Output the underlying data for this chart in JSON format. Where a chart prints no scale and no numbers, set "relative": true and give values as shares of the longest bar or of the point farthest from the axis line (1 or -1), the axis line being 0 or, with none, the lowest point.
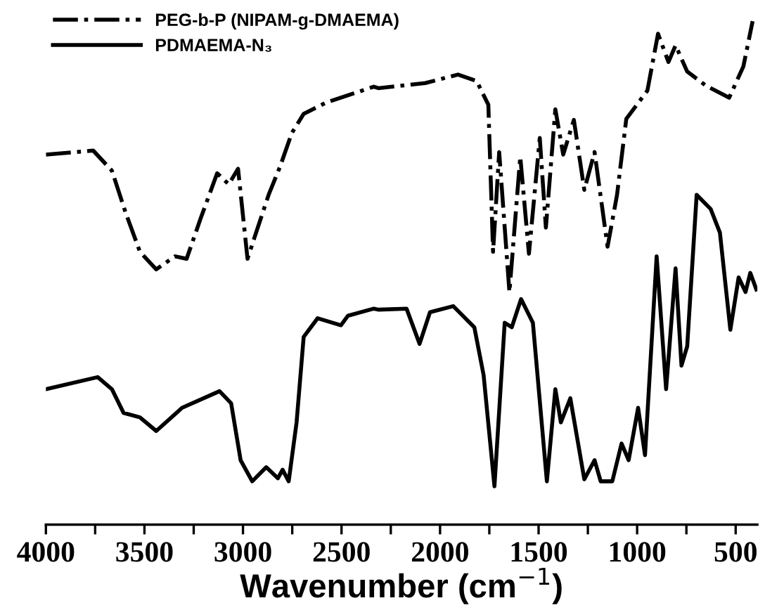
{
  "chart_data": {
    "type": "line",
    "relative": true,
    "xlabel": "Wavenumber (cm$^{−1}$)",
    "xlim": [
      4000,
      390
    ],
    "xticks": [
      4000,
      {
        "value": 3750,
        "label": null
      },
      3500,
      {
        "value": 3250,
        "label": null
      },
      3000,
      {
        "value": 2750,
        "label": null
      },
      2500,
      {
        "value": 2250,
        "label": null
      },
      2000,
      {
        "value": 1750,
        "label": null
      },
      1500,
      {
        "value": 1250,
        "label": null
      },
      1000,
      {
        "value": 750,
        "label": null
      },
      500
    ],
    "tick_labels": "x",
    "grid": false,
    "legend": "top left",
    "marker": "none",
    "series": [
      {
        "name": "PEG-b-P (NIPAM-g-DMAEMA)",
        "color": "#000000",
        "line_style": "dashdot",
        "x": [
          4000,
          3760,
          3665,
          3594,
          3523,
          3440,
          3345,
          3286,
          3215,
          3131,
          3072,
          3025,
          2977,
          2941,
          2870,
          2811,
          2752,
          2692,
          2574,
          2336,
          2313,
          2076,
          1909,
          1814,
          1755,
          1731,
          1700,
          1648,
          1593,
          1549,
          1494,
          1463,
          1415,
          1375,
          1321,
          1268,
          1216,
          1150,
          1102,
          1055,
          948,
          894,
          841,
          805,
          746,
          651,
          533,
          461,
          414
        ],
        "values": [
          0.735,
          0.743,
          0.703,
          0.618,
          0.542,
          0.507,
          0.533,
          0.528,
          0.608,
          0.698,
          0.676,
          0.707,
          0.528,
          0.571,
          0.655,
          0.712,
          0.778,
          0.816,
          0.839,
          0.87,
          0.867,
          0.877,
          0.894,
          0.881,
          0.834,
          0.542,
          0.74,
          0.462,
          0.731,
          0.538,
          0.768,
          0.59,
          0.825,
          0.735,
          0.804,
          0.665,
          0.74,
          0.552,
          0.655,
          0.806,
          0.862,
          0.975,
          0.919,
          0.952,
          0.9,
          0.872,
          0.848,
          0.91,
          1
        ]
      },
      {
        "name": "PDMAEMA-N₃",
        "color": "#000000",
        "line_style": "solid",
        "x": [
          4000,
          3737,
          3665,
          3606,
          3523,
          3440,
          3309,
          3119,
          3060,
          3012,
          2953,
          2882,
          2823,
          2799,
          2768,
          2728,
          2692,
          2621,
          2503,
          2467,
          2336,
          2313,
          2170,
          2104,
          2051,
          1933,
          1826,
          1779,
          1724,
          1672,
          1636,
          1589,
          1529,
          1458,
          1415,
          1387,
          1339,
          1268,
          1216,
          1185,
          1126,
          1079,
          1043,
          995,
          960,
          901,
          853,
          805,
          775,
          746,
          698,
          627,
          580,
          527,
          485,
          450,
          426,
          395
        ],
        "values": [
          0.269,
          0.293,
          0.269,
          0.222,
          0.213,
          0.186,
          0.232,
          0.265,
          0.241,
          0.128,
          0.086,
          0.114,
          0.092,
          0.109,
          0.086,
          0.203,
          0.373,
          0.41,
          0.396,
          0.415,
          0.429,
          0.427,
          0.429,
          0.359,
          0.422,
          0.434,
          0.392,
          0.297,
          0.076,
          0.401,
          0.392,
          0.448,
          0.401,
          0.086,
          0.269,
          0.203,
          0.251,
          0.09,
          0.128,
          0.086,
          0.086,
          0.161,
          0.128,
          0.232,
          0.138,
          0.533,
          0.269,
          0.509,
          0.316,
          0.354,
          0.655,
          0.627,
          0.58,
          0.387,
          0.491,
          0.462,
          0.5,
          0.467
        ]
      }
    ]
  }
}
